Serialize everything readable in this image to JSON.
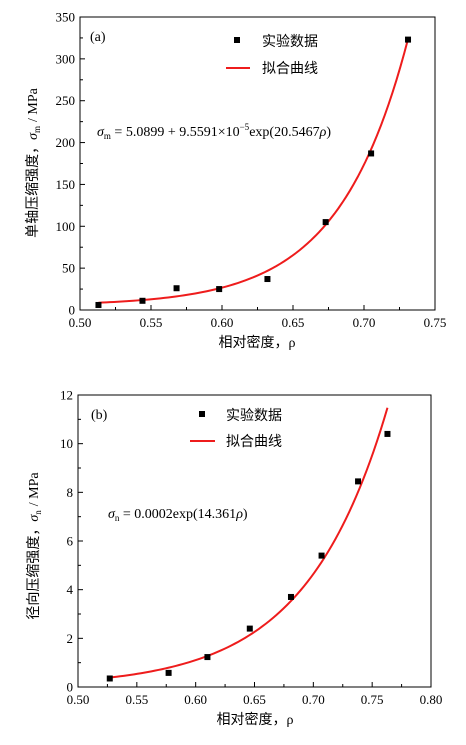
{
  "colors": {
    "fit": "#ee1c1c",
    "marker": "#000000",
    "axis": "#000000"
  },
  "chart_data": [
    {
      "type": "scatter",
      "panel_label": "(a)",
      "xlabel": "相对密度，ρ",
      "ylabel_prefix": "单轴压缩强度，",
      "ylabel_symbol": "σ",
      "ylabel_sub": "m",
      "ylabel_unit": "/ MPa",
      "xlim": [
        0.5,
        0.75
      ],
      "ylim": [
        0,
        350
      ],
      "xticks": [
        "0.50",
        "0.55",
        "0.60",
        "0.65",
        "0.70",
        "0.75"
      ],
      "yticks": [
        "0",
        "50",
        "100",
        "150",
        "200",
        "250",
        "300",
        "350"
      ],
      "legend": {
        "markers_label": "实验数据",
        "fit_label": "拟合曲线",
        "placement": "top-center"
      },
      "equation": {
        "symbol": "σ",
        "sub": "m",
        "rhs_1": " = 5.0899 + 9.5591×10",
        "exp": "−5",
        "rhs_2": "exp(20.5467",
        "rho": "ρ",
        "close": ")"
      },
      "series": [
        {
          "kind": "markers",
          "x": [
            0.513,
            0.544,
            0.568,
            0.598,
            0.632,
            0.673,
            0.705,
            0.731
          ],
          "y": [
            6,
            11,
            26,
            25,
            37,
            105,
            187,
            323
          ]
        }
      ],
      "fit": {
        "model": "exp_offset",
        "a": 5.0899,
        "b": 9.5591e-05,
        "c": 20.5467,
        "x_range": [
          0.513,
          0.731
        ]
      }
    },
    {
      "type": "scatter",
      "panel_label": "(b)",
      "xlabel": "相对密度，ρ",
      "ylabel_prefix": "径向压缩强度，",
      "ylabel_symbol": "σ",
      "ylabel_sub": "n",
      "ylabel_unit": "/ MPa",
      "xlim": [
        0.5,
        0.8
      ],
      "ylim": [
        0,
        12
      ],
      "xticks": [
        "0.50",
        "0.55",
        "0.60",
        "0.65",
        "0.70",
        "0.75",
        "0.80"
      ],
      "yticks": [
        "0",
        "2",
        "4",
        "6",
        "8",
        "10",
        "12"
      ],
      "legend": {
        "markers_label": "实验数据",
        "fit_label": "拟合曲线",
        "placement": "top-center"
      },
      "equation": {
        "symbol": "σ",
        "sub": "n",
        "rhs_1": " = 0.0002exp(14.361",
        "exp": "",
        "rhs_2": "",
        "rho": "ρ",
        "close": ")"
      },
      "series": [
        {
          "kind": "markers",
          "x": [
            0.527,
            0.577,
            0.61,
            0.646,
            0.681,
            0.707,
            0.738,
            0.763
          ],
          "y": [
            0.35,
            0.58,
            1.23,
            2.4,
            3.7,
            5.4,
            8.45,
            10.4
          ]
        }
      ],
      "fit": {
        "model": "exp",
        "a": 0.0002,
        "c": 14.361,
        "x_range": [
          0.527,
          0.763
        ]
      }
    }
  ]
}
